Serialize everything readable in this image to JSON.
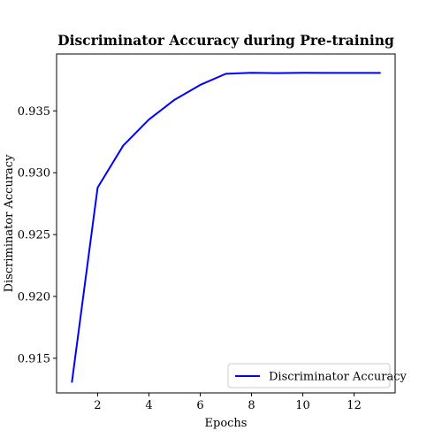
{
  "chart_data": {
    "type": "line",
    "title": "Discriminator Accuracy during Pre-training",
    "xlabel": "Epochs",
    "ylabel": "Discriminator Accuracy",
    "xlim": [
      0.4,
      13.6
    ],
    "ylim": [
      0.9122,
      0.9396
    ],
    "xticks": [
      2,
      4,
      6,
      8,
      10,
      12
    ],
    "yticks": [
      0.915,
      0.92,
      0.925,
      0.93,
      0.935
    ],
    "xtick_labels": [
      "2",
      "4",
      "6",
      "8",
      "10",
      "12"
    ],
    "ytick_labels": [
      "0.915",
      "0.920",
      "0.925",
      "0.930",
      "0.935"
    ],
    "grid": false,
    "legend_position": "lower-right",
    "series": [
      {
        "name": "Discriminator Accuracy",
        "color": "#0000ff",
        "x": [
          1,
          2,
          3,
          4,
          5,
          6,
          7,
          8,
          9,
          10,
          11,
          12,
          13
        ],
        "y": [
          0.9131,
          0.9288,
          0.9322,
          0.9343,
          0.9359,
          0.9371,
          0.938,
          0.93808,
          0.93805,
          0.93808,
          0.93807,
          0.93807,
          0.93807
        ]
      }
    ]
  }
}
